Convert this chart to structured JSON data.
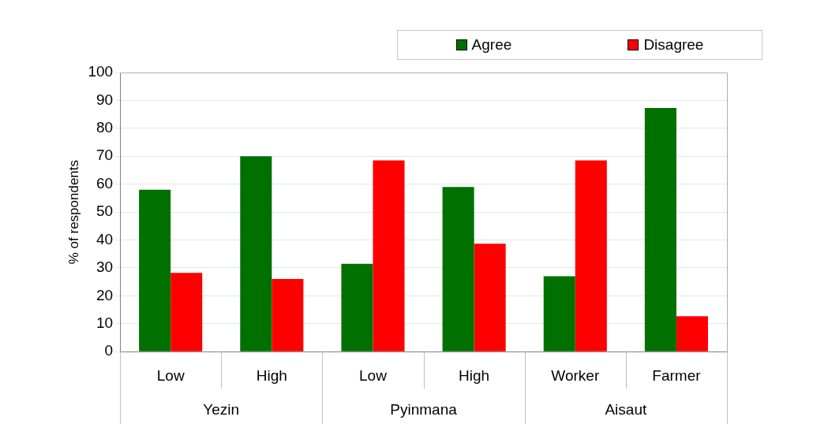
{
  "chart_data": {
    "type": "bar",
    "ylabel": "% of respondents",
    "categories": [
      "Low",
      "High",
      "Low",
      "High",
      "Worker",
      "Farmer"
    ],
    "series": [
      {
        "name": "Agree",
        "color": "#007000",
        "values": [
          58,
          70,
          31.5,
          59,
          27,
          87.3
        ]
      },
      {
        "name": "Disagree",
        "color": "#ff0000",
        "values": [
          28.2,
          26,
          68.5,
          38.7,
          68.5,
          12.7
        ]
      }
    ],
    "annotations": [
      "Yezin",
      "Pyinmana",
      "Aisaut"
    ],
    "ylim": [
      0,
      100
    ],
    "yticks": [
      0,
      10,
      20,
      30,
      40,
      50,
      60,
      70,
      80,
      90,
      100
    ],
    "grid": "y",
    "legend": "top right"
  }
}
